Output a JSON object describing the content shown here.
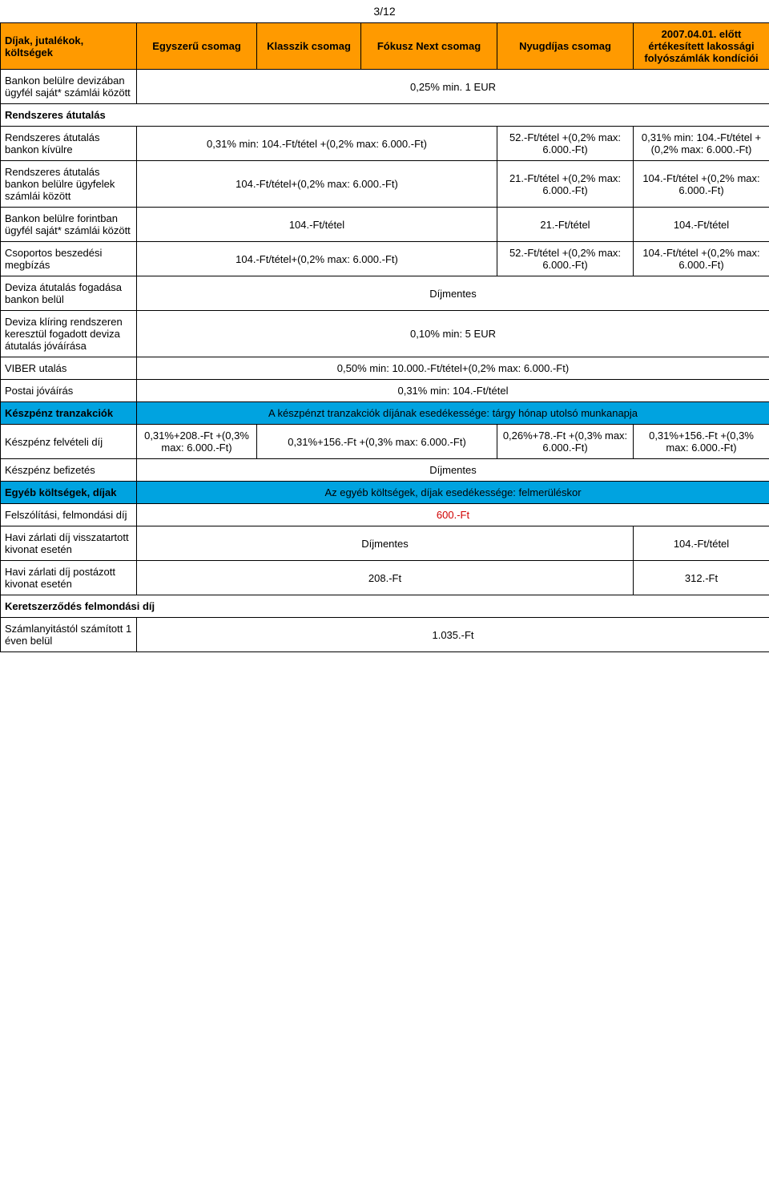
{
  "pagenum": "3/12",
  "header": {
    "col1": "Díjak, jutalékok, költségek",
    "col2": "Egyszerű csomag",
    "col3": "Klasszik csomag",
    "col4": "Fókusz Next csomag",
    "col5": "Nyugdíjas csomag",
    "col6": "2007.04.01. előtt értékesített lakossági folyószámlák kondíciói"
  },
  "r1": {
    "label": "Bankon belülre devizában ügyfél saját* számlái között",
    "val": "0,25% min. 1 EUR"
  },
  "r2": {
    "label": "Rendszeres átutalás"
  },
  "r3": {
    "label": "Rendszeres átutalás bankon kívülre",
    "a": "0,31% min: 104.-Ft/tétel\n+(0,2% max: 6.000.-Ft)",
    "d": "52.-Ft/tétel +(0,2% max: 6.000.-Ft)",
    "e": "0,31% min: 104.-Ft/tétel +(0,2% max: 6.000.-Ft)"
  },
  "r4": {
    "label": "Rendszeres átutalás bankon belülre ügyfelek számlái között",
    "a": "104.-Ft/tétel+(0,2% max: 6.000.-Ft)",
    "d": "21.-Ft/tétel +(0,2% max: 6.000.-Ft)",
    "e": "104.-Ft/tétel +(0,2% max: 6.000.-Ft)"
  },
  "r5": {
    "label": "Bankon belülre forintban ügyfél saját* számlái között",
    "a": "104.-Ft/tétel",
    "d": "21.-Ft/tétel",
    "e": "104.-Ft/tétel"
  },
  "r6": {
    "label": "Csoportos beszedési megbízás",
    "a": "104.-Ft/tétel+(0,2% max: 6.000.-Ft)",
    "d": "52.-Ft/tétel +(0,2% max: 6.000.-Ft)",
    "e": "104.-Ft/tétel +(0,2% max: 6.000.-Ft)"
  },
  "r7": {
    "label": "Deviza átutalás fogadása bankon belül",
    "val": "Díjmentes"
  },
  "r8": {
    "label": "Deviza klíring rendszeren keresztül fogadott deviza átutalás jóváírása",
    "val": "0,10% min: 5 EUR"
  },
  "r9": {
    "label": "VIBER utalás",
    "val": "0,50% min: 10.000.-Ft/tétel+(0,2% max: 6.000.-Ft)"
  },
  "r10": {
    "label": "Postai jóváírás",
    "val": "0,31% min: 104.-Ft/tétel"
  },
  "r11": {
    "label": "Készpénz tranzakciók",
    "val": "A készpénzt tranzakciók díjának esedékessége: tárgy hónap utolsó munkanapja"
  },
  "r12": {
    "label": "Készpénz felvételi díj",
    "a": "0,31%+208.-Ft +(0,3% max: 6.000.-Ft)",
    "b": "0,31%+156.-Ft +(0,3% max: 6.000.-Ft)",
    "d": "0,26%+78.-Ft +(0,3% max: 6.000.-Ft)",
    "e": "0,31%+156.-Ft +(0,3% max: 6.000.-Ft)"
  },
  "r13": {
    "label": "Készpénz befizetés",
    "val": "Díjmentes"
  },
  "r14": {
    "label": "Egyéb költségek, díjak",
    "val": "Az egyéb költségek, díjak esedékessége: felmerüléskor"
  },
  "r15": {
    "label": "Felszólítási, felmondási díj",
    "val": "600.-Ft"
  },
  "r16": {
    "label": "Havi zárlati díj visszatartott kivonat esetén",
    "a": "Díjmentes",
    "e": "104.-Ft/tétel"
  },
  "r17": {
    "label": "Havi zárlati díj postázott kivonat esetén",
    "a": "208.-Ft",
    "e": "312.-Ft"
  },
  "r18": {
    "label": "Keretszerződés felmondási díj"
  },
  "r19": {
    "label": "Számlanyitástól számított 1 éven belül",
    "val": "1.035.-Ft"
  }
}
